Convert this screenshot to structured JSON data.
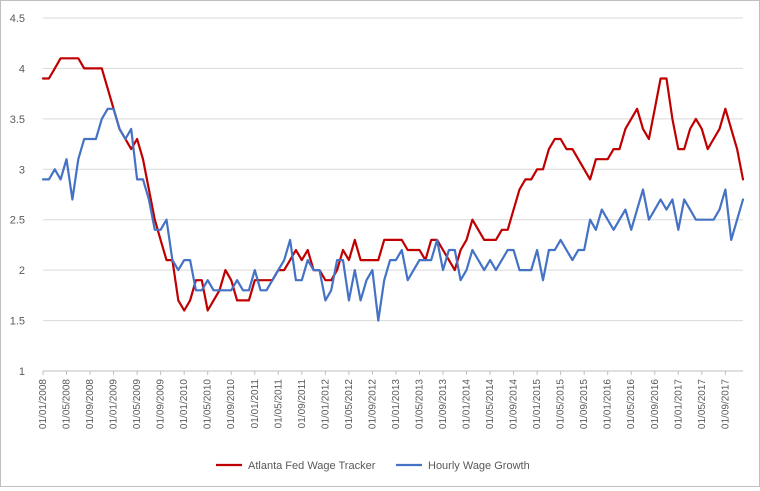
{
  "chart_data": {
    "type": "line",
    "xlabel": "",
    "ylabel": "",
    "ylim": [
      1,
      4.5
    ],
    "y_ticks": [
      "1",
      "1.5",
      "2",
      "2.5",
      "3",
      "3.5",
      "4",
      "4.5"
    ],
    "x_tick_labels": [
      "01/01/2008",
      "01/05/2008",
      "01/09/2008",
      "01/01/2009",
      "01/05/2009",
      "01/09/2009",
      "01/01/2010",
      "01/05/2010",
      "01/09/2010",
      "01/01/2011",
      "01/05/2011",
      "01/09/2011",
      "01/01/2012",
      "01/05/2012",
      "01/09/2012",
      "01/01/2013",
      "01/05/2013",
      "01/09/2013",
      "01/01/2014",
      "01/05/2014",
      "01/09/2014",
      "01/01/2015",
      "01/05/2015",
      "01/09/2015",
      "01/01/2016",
      "01/05/2016",
      "01/09/2016",
      "01/01/2017",
      "01/05/2017",
      "01/09/2017"
    ],
    "x_start": "2008-01",
    "grid": "horizontal",
    "legend_position": "bottom",
    "series": [
      {
        "name": "Atlanta Fed Wage Tracker",
        "color": "#c00000",
        "values": [
          3.9,
          3.9,
          4.0,
          4.1,
          4.1,
          4.1,
          4.1,
          4.0,
          4.0,
          4.0,
          4.0,
          3.8,
          3.6,
          3.4,
          3.3,
          3.2,
          3.3,
          3.1,
          2.8,
          2.5,
          2.3,
          2.1,
          2.1,
          1.7,
          1.6,
          1.7,
          1.9,
          1.9,
          1.6,
          1.7,
          1.8,
          2.0,
          1.9,
          1.7,
          1.7,
          1.7,
          1.9,
          1.9,
          1.9,
          1.9,
          2.0,
          2.0,
          2.1,
          2.2,
          2.1,
          2.2,
          2.0,
          2.0,
          1.9,
          1.9,
          2.0,
          2.2,
          2.1,
          2.3,
          2.1,
          2.1,
          2.1,
          2.1,
          2.3,
          2.3,
          2.3,
          2.3,
          2.2,
          2.2,
          2.2,
          2.1,
          2.3,
          2.3,
          2.2,
          2.1,
          2.0,
          2.2,
          2.3,
          2.5,
          2.4,
          2.3,
          2.3,
          2.3,
          2.4,
          2.4,
          2.6,
          2.8,
          2.9,
          2.9,
          3.0,
          3.0,
          3.2,
          3.3,
          3.3,
          3.2,
          3.2,
          3.1,
          3.0,
          2.9,
          3.1,
          3.1,
          3.1,
          3.2,
          3.2,
          3.4,
          3.5,
          3.6,
          3.4,
          3.3,
          3.6,
          3.9,
          3.9,
          3.5,
          3.2,
          3.2,
          3.4,
          3.5,
          3.4,
          3.2,
          3.3,
          3.4,
          3.6,
          3.4,
          3.2,
          2.9
        ]
      },
      {
        "name": "Hourly Wage Growth",
        "color": "#4472c4",
        "values": [
          2.9,
          2.9,
          3.0,
          2.9,
          3.1,
          2.7,
          3.1,
          3.3,
          3.3,
          3.3,
          3.5,
          3.6,
          3.6,
          3.4,
          3.3,
          3.4,
          2.9,
          2.9,
          2.7,
          2.4,
          2.4,
          2.5,
          2.1,
          2.0,
          2.1,
          2.1,
          1.8,
          1.8,
          1.9,
          1.8,
          1.8,
          1.8,
          1.8,
          1.9,
          1.8,
          1.8,
          2.0,
          1.8,
          1.8,
          1.9,
          2.0,
          2.1,
          2.3,
          1.9,
          1.9,
          2.1,
          2.0,
          2.0,
          1.7,
          1.8,
          2.1,
          2.1,
          1.7,
          2.0,
          1.7,
          1.9,
          2.0,
          1.5,
          1.9,
          2.1,
          2.1,
          2.2,
          1.9,
          2.0,
          2.1,
          2.1,
          2.1,
          2.3,
          2.0,
          2.2,
          2.2,
          1.9,
          2.0,
          2.2,
          2.1,
          2.0,
          2.1,
          2.0,
          2.1,
          2.2,
          2.2,
          2.0,
          2.0,
          2.0,
          2.2,
          1.9,
          2.2,
          2.2,
          2.3,
          2.2,
          2.1,
          2.2,
          2.2,
          2.5,
          2.4,
          2.6,
          2.5,
          2.4,
          2.5,
          2.6,
          2.4,
          2.6,
          2.8,
          2.5,
          2.6,
          2.7,
          2.6,
          2.7,
          2.4,
          2.7,
          2.6,
          2.5,
          2.5,
          2.5,
          2.5,
          2.6,
          2.8,
          2.3,
          2.5,
          2.7
        ]
      }
    ]
  }
}
